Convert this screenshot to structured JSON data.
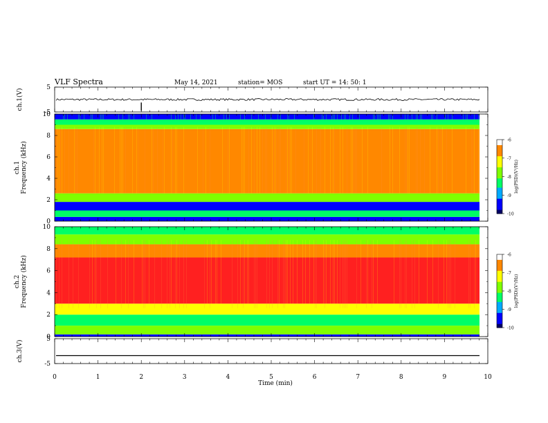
{
  "header": {
    "title": "VLF Spectra",
    "date": "May 14, 2021",
    "station": "station= MOS",
    "start": "start  UT  =   14: 50: 1"
  },
  "chart_data": [
    {
      "type": "line",
      "panel": "ch1-waveform",
      "ylabel": "ch.1(V)",
      "ylim": [
        -5,
        5
      ],
      "yticks": [
        "5",
        "-5"
      ],
      "x": [
        0,
        1,
        2,
        3,
        4,
        5,
        6,
        7,
        8,
        9,
        9.85
      ],
      "values": [
        0,
        0,
        0,
        0,
        0,
        0,
        0,
        0,
        0,
        0,
        0
      ]
    },
    {
      "type": "heatmap",
      "panel": "ch1-spectrogram",
      "ylabel": "ch.1\nFrequency (kHz)",
      "ylim": [
        0,
        10
      ],
      "yticks": [
        "0",
        "2",
        "4",
        "6",
        "8",
        "10"
      ],
      "bands": [
        {
          "f": [
            0.0,
            0.4
          ],
          "logpsd": -9.7
        },
        {
          "f": [
            0.4,
            1.0
          ],
          "logpsd": -8.3
        },
        {
          "f": [
            1.0,
            1.8
          ],
          "logpsd": -9.5
        },
        {
          "f": [
            1.8,
            2.6
          ],
          "logpsd": -8.0
        },
        {
          "f": [
            2.6,
            8.6
          ],
          "logpsd": -6.6
        },
        {
          "f": [
            8.6,
            9.0
          ],
          "logpsd": -7.6
        },
        {
          "f": [
            9.0,
            9.5
          ],
          "logpsd": -8.3
        },
        {
          "f": [
            9.5,
            10.0
          ],
          "logpsd": -9.2
        }
      ],
      "colorbar": {
        "label": "log(PSD)(V²/Hz)",
        "range": [
          -10,
          -6
        ],
        "ticks": [
          "-6",
          "-7",
          "-8",
          "-9",
          "-10"
        ]
      }
    },
    {
      "type": "heatmap",
      "panel": "ch2-spectrogram",
      "ylabel": "ch.2\nFrequency (kHz)",
      "ylim": [
        0,
        10
      ],
      "yticks": [
        "0",
        "2",
        "4",
        "6",
        "8",
        "10"
      ],
      "bands": [
        {
          "f": [
            0.0,
            0.2
          ],
          "logpsd": -9.6
        },
        {
          "f": [
            0.2,
            1.0
          ],
          "logpsd": -7.8
        },
        {
          "f": [
            1.0,
            2.0
          ],
          "logpsd": -8.2
        },
        {
          "f": [
            2.0,
            3.0
          ],
          "logpsd": -7.0
        },
        {
          "f": [
            3.0,
            7.2
          ],
          "logpsd": -6.0
        },
        {
          "f": [
            7.2,
            8.4
          ],
          "logpsd": -6.8
        },
        {
          "f": [
            8.4,
            9.3
          ],
          "logpsd": -7.8
        },
        {
          "f": [
            9.3,
            10.0
          ],
          "logpsd": -8.3
        }
      ],
      "colorbar": {
        "label": "log(PSD)(V²/Hz)",
        "range": [
          -10,
          -6
        ],
        "ticks": [
          "-6",
          "-7",
          "-8",
          "-9",
          "-10"
        ]
      }
    },
    {
      "type": "line",
      "panel": "ch3-waveform",
      "ylabel": "ch.3(V)",
      "ylim": [
        -5,
        5
      ],
      "yticks": [
        "5",
        "-5"
      ],
      "x": [
        0,
        1,
        2,
        3,
        4,
        5,
        6,
        7,
        8,
        9,
        9.85
      ],
      "values": [
        -1.8,
        -1.8,
        -1.8,
        -1.8,
        -1.8,
        -1.8,
        -1.8,
        -1.8,
        -1.8,
        -1.8,
        -1.8
      ]
    }
  ],
  "xaxis": {
    "label": "Time  (min)",
    "range": [
      0,
      10
    ],
    "ticks": [
      "0",
      "1",
      "2",
      "3",
      "4",
      "5",
      "6",
      "7",
      "8",
      "9",
      "10"
    ]
  },
  "colormap": [
    "#000066",
    "#0000ff",
    "#00aaff",
    "#00ff66",
    "#7fff00",
    "#ffff00",
    "#ff8800",
    "#ff2020",
    "#ffffff"
  ]
}
